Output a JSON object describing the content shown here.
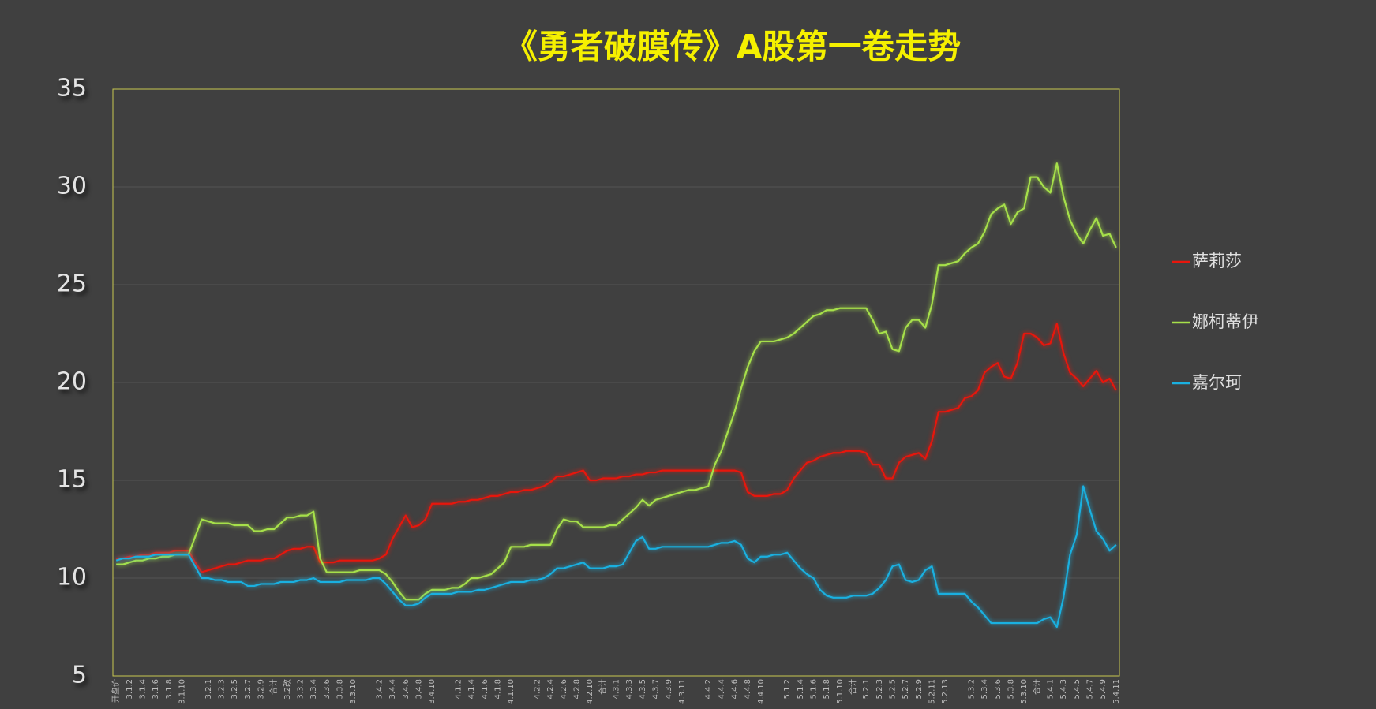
{
  "chart_data": {
    "type": "line",
    "title": "《勇者破膜传》A股第一卷走势",
    "categories": [
      "开盘价",
      null,
      "3.1.2",
      null,
      "3.1.4",
      null,
      "3.1.6",
      null,
      "3.1.8",
      null,
      "3.1.10",
      null,
      null,
      null,
      "3.2.1",
      null,
      "3.2.3",
      null,
      "3.2.5",
      null,
      "3.2.7",
      null,
      "3.2.9",
      null,
      "合计",
      null,
      "3.2改",
      null,
      "3.3.2",
      null,
      "3.3.4",
      null,
      "3.3.6",
      null,
      "3.3.8",
      null,
      "3.3.10",
      null,
      null,
      null,
      "3.4.2",
      null,
      "3.4.4",
      null,
      "3.4.6",
      null,
      "3.4.8",
      null,
      "3.4.10",
      null,
      null,
      null,
      "4.1.2",
      null,
      "4.1.4",
      null,
      "4.1.6",
      null,
      "4.1.8",
      null,
      "4.1.10",
      null,
      null,
      null,
      "4.2.2",
      null,
      "4.2.4",
      null,
      "4.2.6",
      null,
      "4.2.8",
      null,
      "4.2.10",
      null,
      "合计",
      null,
      "4.3.1",
      null,
      "4.3.3",
      null,
      "4.3.5",
      null,
      "4.3.7",
      null,
      "4.3.9",
      null,
      "4.3.11",
      null,
      null,
      null,
      "4.4.2",
      null,
      "4.4.4",
      null,
      "4.4.6",
      null,
      "4.4.8",
      null,
      "4.4.10",
      null,
      null,
      null,
      "5.1.2",
      null,
      "5.1.4",
      null,
      "5.1.6",
      null,
      "5.1.8",
      null,
      "5.1.10",
      null,
      "合计",
      null,
      "5.2.1",
      null,
      "5.2.3",
      null,
      "5.2.5",
      null,
      "5.2.7",
      null,
      "5.2.9",
      null,
      "5.2.11",
      null,
      "5.2.13",
      null,
      null,
      null,
      "5.3.2",
      null,
      "5.3.4",
      null,
      "5.3.6",
      null,
      "5.3.8",
      null,
      "5.3.10",
      null,
      "合计",
      null,
      "5.4.1",
      null,
      "5.4.3",
      null,
      "5.4.5",
      null,
      "5.4.7",
      null,
      "5.4.9",
      null,
      "5.4.11"
    ],
    "series": [
      {
        "name": "萨莉莎",
        "color": "#e8160c",
        "values": [
          11.0,
          11.0,
          11.1,
          11.1,
          11.2,
          11.2,
          11.3,
          11.3,
          11.3,
          11.4,
          11.4,
          11.4,
          10.8,
          10.3,
          10.4,
          10.5,
          10.6,
          10.7,
          10.7,
          10.8,
          10.9,
          10.9,
          10.9,
          11.0,
          11.0,
          11.2,
          11.4,
          11.5,
          11.5,
          11.6,
          11.6,
          10.8,
          10.8,
          10.8,
          10.9,
          10.9,
          10.9,
          10.9,
          10.9,
          10.9,
          11.0,
          11.2,
          12.0,
          12.6,
          13.2,
          12.6,
          12.7,
          13.0,
          13.8,
          13.8,
          13.8,
          13.8,
          13.9,
          13.9,
          14.0,
          14.0,
          14.1,
          14.2,
          14.2,
          14.3,
          14.4,
          14.4,
          14.5,
          14.5,
          14.6,
          14.7,
          14.9,
          15.2,
          15.2,
          15.3,
          15.4,
          15.5,
          15.0,
          15.0,
          15.1,
          15.1,
          15.1,
          15.2,
          15.2,
          15.3,
          15.3,
          15.4,
          15.4,
          15.5,
          15.5,
          15.5,
          15.5,
          15.5,
          15.5,
          15.5,
          15.5,
          15.5,
          15.5,
          15.5,
          15.5,
          15.4,
          14.4,
          14.2,
          14.2,
          14.2,
          14.3,
          14.3,
          14.5,
          15.1,
          15.5,
          15.9,
          16.0,
          16.2,
          16.3,
          16.4,
          16.4,
          16.5,
          16.5,
          16.5,
          16.4,
          15.8,
          15.8,
          15.1,
          15.1,
          15.9,
          16.2,
          16.3,
          16.4,
          16.1,
          17.0,
          18.5,
          18.5,
          18.6,
          18.7,
          19.2,
          19.3,
          19.6,
          20.5,
          20.8,
          21.0,
          20.3,
          20.2,
          21.0,
          22.5,
          22.5,
          22.3,
          21.9,
          22.0,
          23.0,
          21.5,
          20.5,
          20.2,
          19.8,
          20.2,
          20.6,
          20.0,
          20.2,
          19.6
        ]
      },
      {
        "name": "娜柯蒂伊",
        "color": "#a6e04a",
        "values": [
          10.7,
          10.7,
          10.8,
          10.9,
          10.9,
          11.0,
          11.0,
          11.1,
          11.1,
          11.2,
          11.2,
          11.2,
          12.1,
          13.0,
          12.9,
          12.8,
          12.8,
          12.8,
          12.7,
          12.7,
          12.7,
          12.4,
          12.4,
          12.5,
          12.5,
          12.8,
          13.1,
          13.1,
          13.2,
          13.2,
          13.4,
          11.0,
          10.3,
          10.3,
          10.3,
          10.3,
          10.3,
          10.4,
          10.4,
          10.4,
          10.4,
          10.2,
          9.8,
          9.3,
          8.9,
          8.9,
          8.9,
          9.2,
          9.4,
          9.4,
          9.4,
          9.5,
          9.5,
          9.7,
          10.0,
          10.0,
          10.1,
          10.2,
          10.5,
          10.8,
          11.6,
          11.6,
          11.6,
          11.7,
          11.7,
          11.7,
          11.7,
          12.5,
          13.0,
          12.9,
          12.9,
          12.6,
          12.6,
          12.6,
          12.6,
          12.7,
          12.7,
          13.0,
          13.3,
          13.6,
          14.0,
          13.7,
          14.0,
          14.1,
          14.2,
          14.3,
          14.4,
          14.5,
          14.5,
          14.6,
          14.7,
          15.8,
          16.5,
          17.5,
          18.5,
          19.7,
          20.8,
          21.6,
          22.1,
          22.1,
          22.1,
          22.2,
          22.3,
          22.5,
          22.8,
          23.1,
          23.4,
          23.5,
          23.7,
          23.7,
          23.8,
          23.8,
          23.8,
          23.8,
          23.8,
          23.2,
          22.5,
          22.6,
          21.7,
          21.6,
          22.8,
          23.2,
          23.2,
          22.8,
          24.0,
          26.0,
          26.0,
          26.1,
          26.2,
          26.6,
          26.9,
          27.1,
          27.7,
          28.6,
          28.9,
          29.1,
          28.1,
          28.7,
          28.9,
          30.5,
          30.5,
          30.0,
          29.7,
          31.2,
          29.5,
          28.3,
          27.6,
          27.1,
          27.8,
          28.4,
          27.5,
          27.6,
          26.9
        ]
      },
      {
        "name": "嘉尔珂",
        "color": "#1ab0e0",
        "values": [
          10.9,
          11.0,
          11.0,
          11.1,
          11.1,
          11.1,
          11.2,
          11.2,
          11.2,
          11.2,
          11.2,
          11.2,
          10.6,
          10.0,
          10.0,
          9.9,
          9.9,
          9.8,
          9.8,
          9.8,
          9.6,
          9.6,
          9.7,
          9.7,
          9.7,
          9.8,
          9.8,
          9.8,
          9.9,
          9.9,
          10.0,
          9.8,
          9.8,
          9.8,
          9.8,
          9.9,
          9.9,
          9.9,
          9.9,
          10.0,
          10.0,
          9.7,
          9.3,
          8.9,
          8.6,
          8.6,
          8.7,
          9.0,
          9.2,
          9.2,
          9.2,
          9.2,
          9.3,
          9.3,
          9.3,
          9.4,
          9.4,
          9.5,
          9.6,
          9.7,
          9.8,
          9.8,
          9.8,
          9.9,
          9.9,
          10.0,
          10.2,
          10.5,
          10.5,
          10.6,
          10.7,
          10.8,
          10.5,
          10.5,
          10.5,
          10.6,
          10.6,
          10.7,
          11.3,
          11.9,
          12.1,
          11.5,
          11.5,
          11.6,
          11.6,
          11.6,
          11.6,
          11.6,
          11.6,
          11.6,
          11.6,
          11.7,
          11.8,
          11.8,
          11.9,
          11.7,
          11.0,
          10.8,
          11.1,
          11.1,
          11.2,
          11.2,
          11.3,
          10.9,
          10.5,
          10.2,
          10.0,
          9.4,
          9.1,
          9.0,
          9.0,
          9.0,
          9.1,
          9.1,
          9.1,
          9.2,
          9.5,
          9.9,
          10.6,
          10.7,
          9.9,
          9.8,
          9.9,
          10.4,
          10.6,
          9.2,
          9.2,
          9.2,
          9.2,
          9.2,
          8.8,
          8.5,
          8.1,
          7.7,
          7.7,
          7.7,
          7.7,
          7.7,
          7.7,
          7.7,
          7.7,
          7.9,
          8.0,
          7.5,
          9.0,
          11.2,
          12.2,
          14.7,
          13.5,
          12.4,
          12.0,
          11.4,
          11.7
        ]
      }
    ],
    "ylim": [
      5,
      35
    ],
    "yticks": [
      5,
      10,
      15,
      20,
      25,
      30,
      35
    ],
    "grid": true,
    "legend": "right"
  }
}
